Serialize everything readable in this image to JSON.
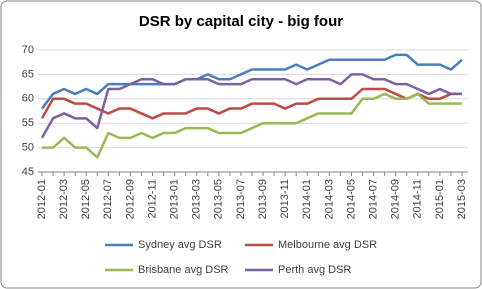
{
  "chart_data": {
    "type": "line",
    "title": "DSR by capital city - big four",
    "categories": [
      "2012-01",
      null,
      "2012-03",
      null,
      "2012-05",
      null,
      "2012-07",
      null,
      "2012-09",
      null,
      "2012-11",
      null,
      "2013-01",
      null,
      "2013-03",
      null,
      "2013-05",
      null,
      "2013-07",
      null,
      "2013-09",
      null,
      "2013-11",
      null,
      "2014-01",
      null,
      "2014-03",
      null,
      "2014-05",
      null,
      "2014-07",
      null,
      "2014-09",
      null,
      "2014-11",
      null,
      "2015-01",
      null,
      "2015-03"
    ],
    "series": [
      {
        "name": "Sydney avg DSR",
        "color": "#4a7ebb",
        "values": [
          58,
          61,
          62,
          61,
          62,
          61,
          63,
          63,
          63,
          63,
          63,
          63,
          63,
          64,
          64,
          65,
          64,
          64,
          65,
          66,
          66,
          66,
          66,
          67,
          66,
          67,
          68,
          68,
          68,
          68,
          68,
          68,
          69,
          69,
          67,
          67,
          67,
          66,
          68
        ]
      },
      {
        "name": "Melbourne avg DSR",
        "color": "#be4b48",
        "values": [
          56,
          60,
          60,
          59,
          59,
          58,
          57,
          58,
          58,
          57,
          56,
          57,
          57,
          57,
          58,
          58,
          57,
          58,
          58,
          59,
          59,
          59,
          58,
          59,
          59,
          60,
          60,
          60,
          60,
          62,
          62,
          62,
          61,
          60,
          61,
          60,
          60,
          61,
          61
        ]
      },
      {
        "name": "Brisbane avg DSR",
        "color": "#98b954",
        "values": [
          50,
          50,
          52,
          50,
          50,
          48,
          53,
          52,
          52,
          53,
          52,
          53,
          53,
          54,
          54,
          54,
          53,
          53,
          53,
          54,
          55,
          55,
          55,
          55,
          56,
          57,
          57,
          57,
          57,
          60,
          60,
          61,
          60,
          60,
          61,
          59,
          59,
          59,
          59
        ]
      },
      {
        "name": "Perth avg DSR",
        "color": "#7d60a0",
        "values": [
          52,
          56,
          57,
          56,
          56,
          54,
          62,
          62,
          63,
          64,
          64,
          63,
          63,
          64,
          64,
          64,
          63,
          63,
          63,
          64,
          64,
          64,
          64,
          63,
          64,
          64,
          64,
          63,
          65,
          65,
          64,
          64,
          63,
          63,
          62,
          61,
          62,
          61,
          61
        ]
      }
    ],
    "ylim": [
      45,
      70
    ],
    "yticks": [
      45,
      50,
      55,
      60,
      65,
      70
    ],
    "grid": true
  }
}
